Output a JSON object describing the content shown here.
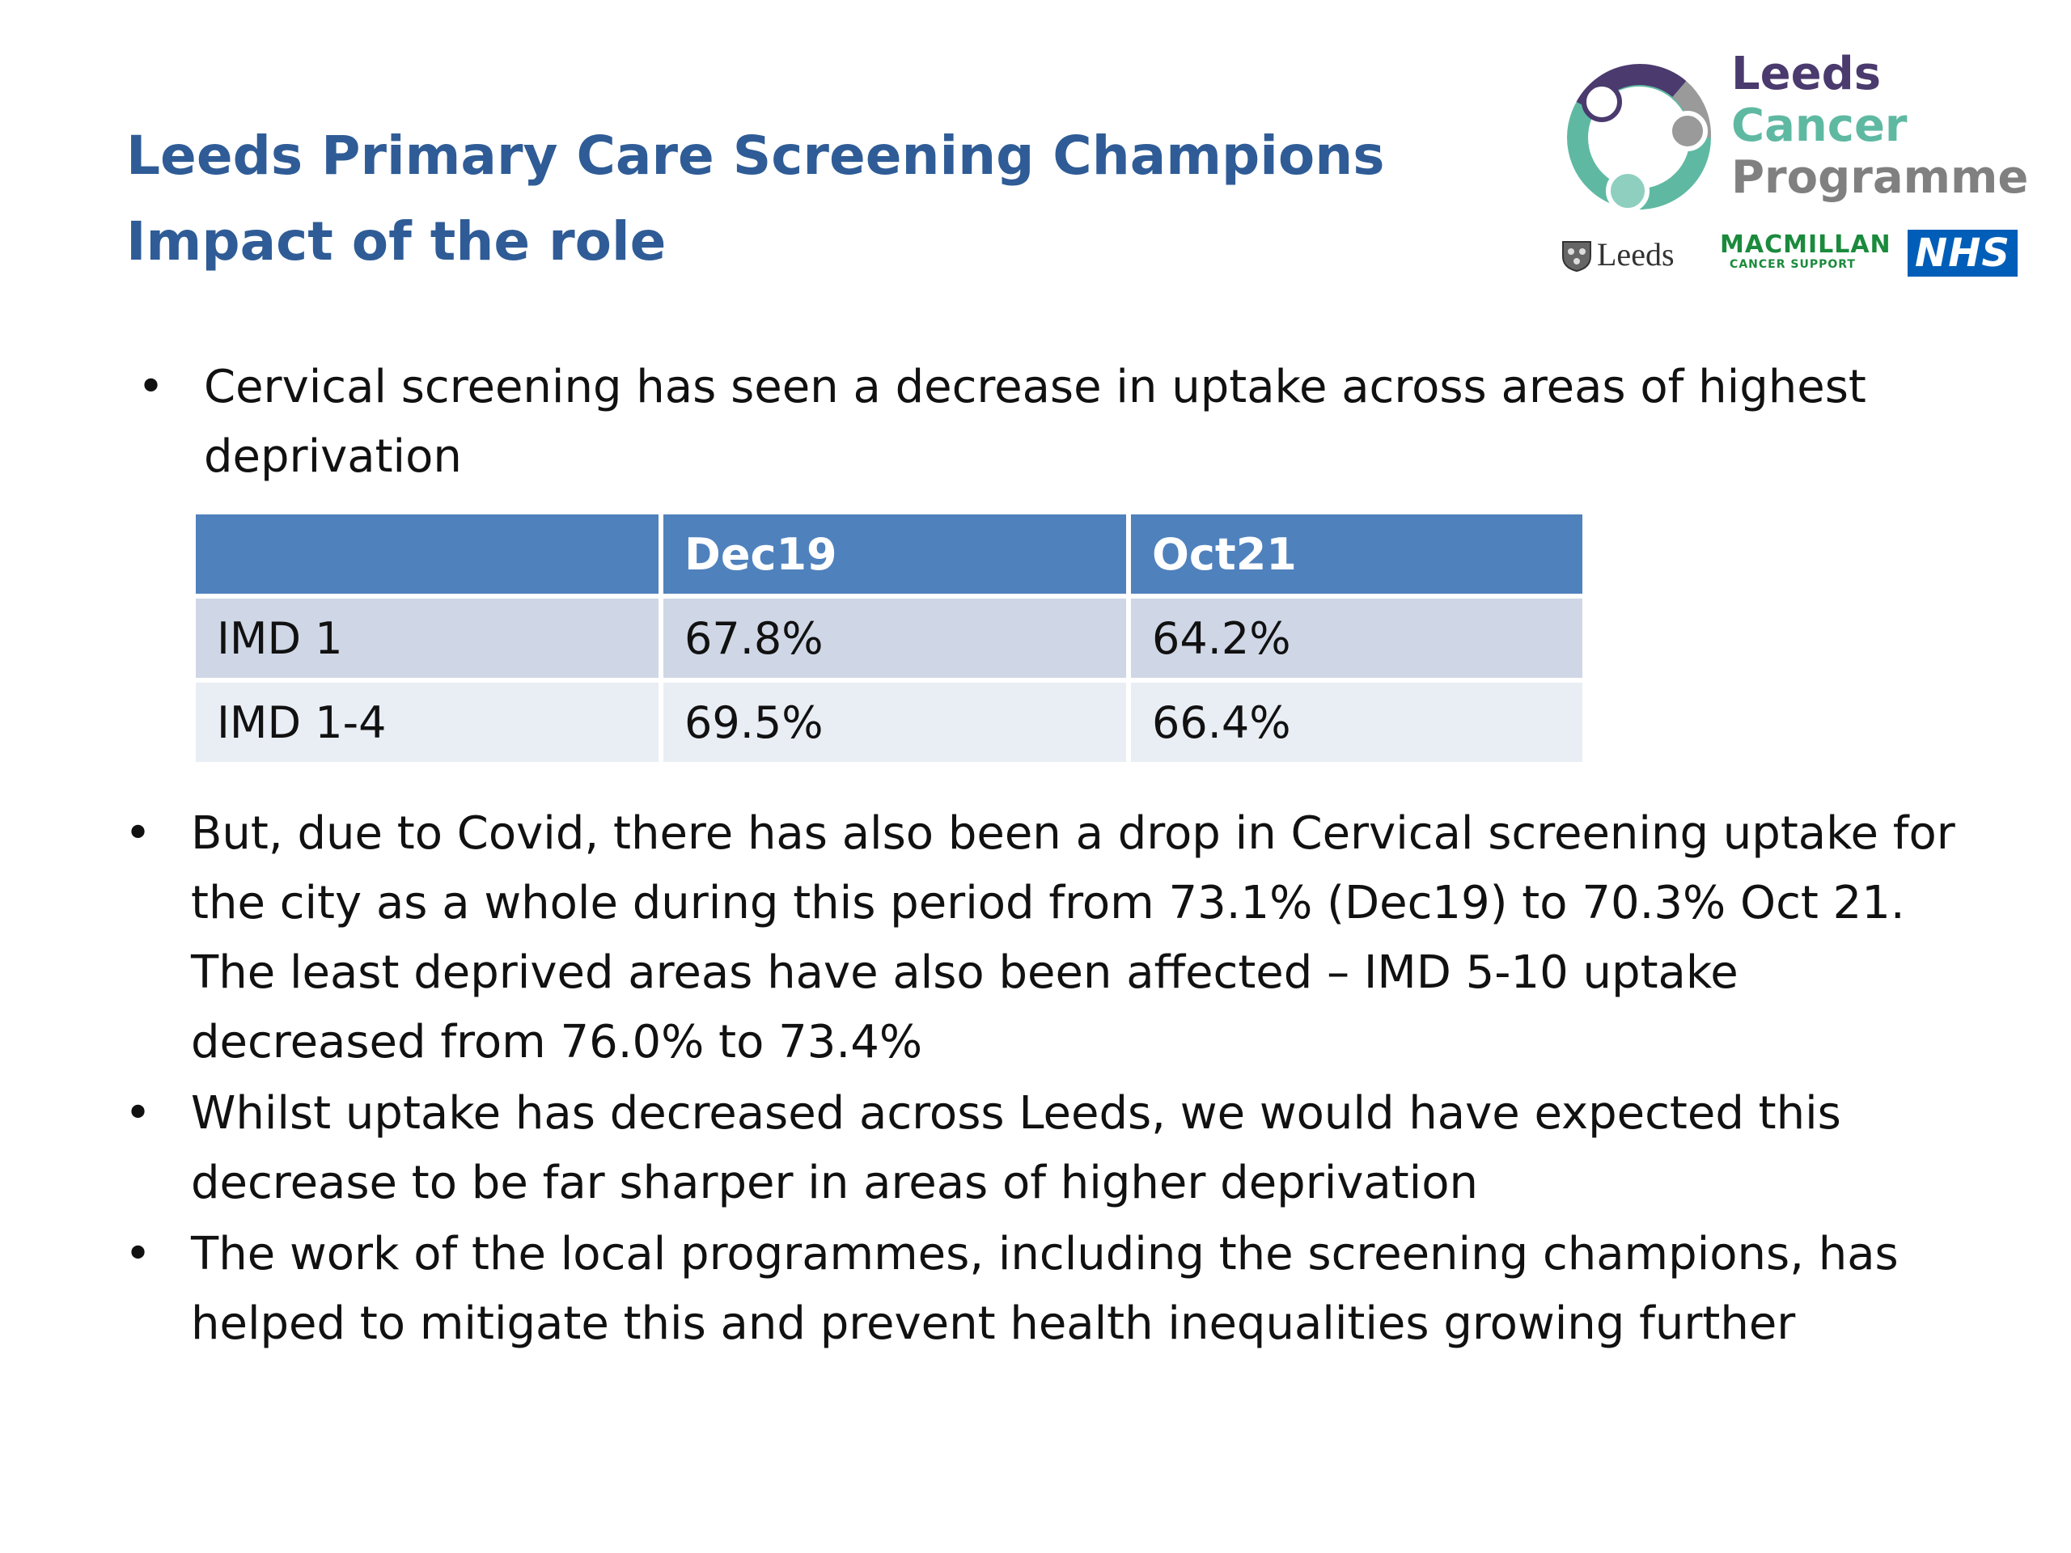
{
  "title": {
    "line1": "Leeds Primary Care Screening Champions",
    "line2": "Impact of the role"
  },
  "logo": {
    "line1": "Leeds",
    "line2": "Cancer",
    "line3": "Programme",
    "partners": {
      "leeds_council": "Leeds",
      "macmillan": "MACMILLAN",
      "macmillan_sub": "CANCER SUPPORT",
      "nhs": "NHS"
    },
    "colors": {
      "purple": "#4a3a6e",
      "teal": "#5fb9a2",
      "grey": "#808080",
      "macmillan_green": "#1b8a3c",
      "nhs_blue": "#005eb8"
    }
  },
  "bullet_symbol": "•",
  "bullets": [
    {
      "lines": [
        "Cervical screening has seen a decrease in uptake across areas of highest",
        "deprivation"
      ]
    },
    {
      "lines": [
        "But, due to Covid, there has also been a drop in Cervical screening uptake for",
        "the city as a whole during this period from 73.1% (Dec19) to 70.3% Oct 21.",
        "The least deprived areas have also been affected – IMD 5-10 uptake",
        "decreased from 76.0% to 73.4%"
      ]
    },
    {
      "lines": [
        "Whilst uptake has decreased across Leeds, we would have expected this",
        "decrease to be far sharper in areas of higher deprivation"
      ]
    },
    {
      "lines": [
        "The work of the local programmes, including the screening champions, has",
        "helped to mitigate this and prevent health inequalities growing further"
      ]
    }
  ],
  "table": {
    "headers": [
      "",
      "Dec19",
      "Oct21"
    ],
    "rows": [
      [
        "IMD 1",
        "67.8%",
        "64.2%"
      ],
      [
        "IMD 1-4",
        "69.5%",
        "66.4%"
      ]
    ],
    "colors": {
      "header_bg": "#4f81bd",
      "row1_bg": "#cfd7e6",
      "row2_bg": "#e9edf4",
      "title_color": "#2f5c96"
    }
  }
}
